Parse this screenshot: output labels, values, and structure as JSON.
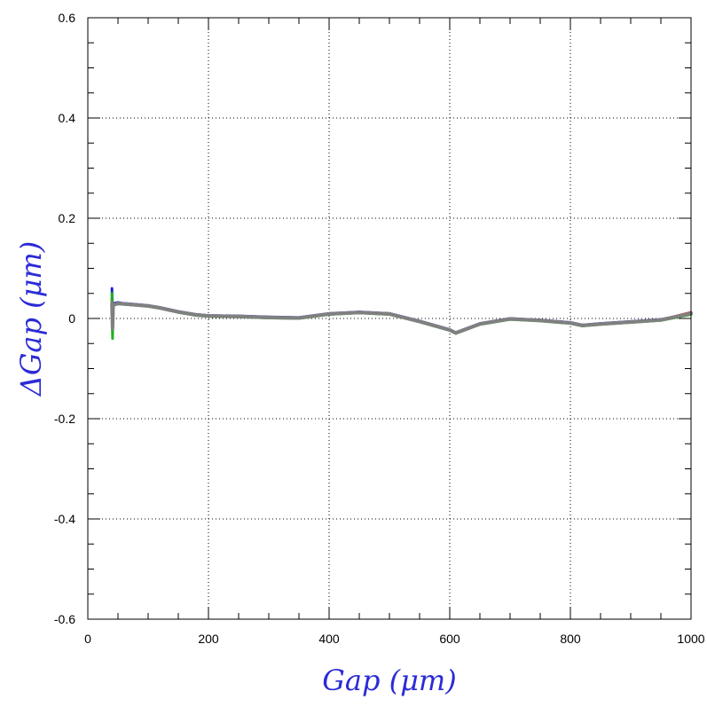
{
  "colors": {
    "axis_title": "#2b2bd6",
    "grid": "#000000",
    "frame": "#000000",
    "series_blue": "#1f1fd0",
    "series_red": "#d02020",
    "series_green": "#20b020",
    "series_gray": "#808080"
  },
  "chart_data": {
    "type": "line",
    "title": "",
    "xlabel": "Gap  (μm)",
    "ylabel": "ΔGap  (μm)",
    "xlim": [
      0,
      1000
    ],
    "ylim": [
      -0.6,
      0.6
    ],
    "x_ticks": [
      0,
      200,
      400,
      600,
      800,
      1000
    ],
    "x_tick_labels": [
      "0",
      "200",
      "400",
      "600",
      "800",
      "1000"
    ],
    "y_ticks": [
      -0.6,
      -0.4,
      -0.2,
      0,
      0.2,
      0.4,
      0.6
    ],
    "y_tick_labels": [
      "-0.6",
      "-0.4",
      "-0.2",
      "0",
      "0.2",
      "0.4",
      "0.6"
    ],
    "grid": true,
    "series": [
      {
        "color": "#1f1fd0",
        "x": [
          40,
          41,
          42,
          50,
          60,
          80,
          100,
          120,
          150,
          180,
          200,
          250,
          300,
          350,
          400,
          450,
          500,
          550,
          600,
          610,
          650,
          700,
          750,
          800,
          820,
          850,
          900,
          950,
          1000
        ],
        "y": [
          0.06,
          0.0,
          0.03,
          0.032,
          0.03,
          0.028,
          0.026,
          0.022,
          0.014,
          0.008,
          0.006,
          0.005,
          0.003,
          0.002,
          0.01,
          0.013,
          0.01,
          -0.005,
          -0.022,
          -0.028,
          -0.01,
          0.0,
          -0.003,
          -0.008,
          -0.013,
          -0.01,
          -0.006,
          -0.002,
          0.01
        ]
      },
      {
        "color": "#d02020",
        "x": [
          40,
          41,
          42,
          50,
          60,
          80,
          100,
          120,
          150,
          180,
          200,
          250,
          300,
          350,
          400,
          450,
          500,
          550,
          600,
          610,
          650,
          700,
          750,
          800,
          820,
          850,
          900,
          950,
          1000
        ],
        "y": [
          0.04,
          -0.03,
          0.028,
          0.03,
          0.029,
          0.027,
          0.025,
          0.021,
          0.013,
          0.007,
          0.005,
          0.004,
          0.002,
          0.001,
          0.009,
          0.012,
          0.009,
          -0.006,
          -0.023,
          -0.029,
          -0.011,
          -0.001,
          -0.004,
          -0.009,
          -0.014,
          -0.011,
          -0.007,
          -0.003,
          0.012
        ]
      },
      {
        "color": "#20b020",
        "x": [
          40,
          41,
          42,
          50,
          60,
          80,
          100,
          120,
          150,
          180,
          200,
          250,
          300,
          350,
          400,
          450,
          500,
          550,
          600,
          610,
          650,
          700,
          750,
          800,
          820,
          850,
          900,
          950,
          1000
        ],
        "y": [
          0.05,
          -0.04,
          0.026,
          0.029,
          0.028,
          0.026,
          0.024,
          0.02,
          0.012,
          0.006,
          0.004,
          0.003,
          0.001,
          0.0,
          0.008,
          0.011,
          0.008,
          -0.007,
          -0.024,
          -0.03,
          -0.012,
          -0.002,
          -0.005,
          -0.01,
          -0.015,
          -0.012,
          -0.008,
          -0.004,
          0.008
        ]
      },
      {
        "color": "#808080",
        "x": [
          40,
          41,
          42,
          50,
          60,
          80,
          100,
          120,
          150,
          180,
          200,
          250,
          300,
          350,
          400,
          450,
          500,
          550,
          600,
          610,
          650,
          700,
          750,
          800,
          820,
          850,
          900,
          950,
          1000
        ],
        "y": [
          0.03,
          -0.02,
          0.027,
          0.03,
          0.029,
          0.027,
          0.025,
          0.021,
          0.013,
          0.007,
          0.005,
          0.004,
          0.002,
          0.001,
          0.009,
          0.012,
          0.009,
          -0.006,
          -0.023,
          -0.029,
          -0.011,
          -0.001,
          -0.004,
          -0.009,
          -0.014,
          -0.011,
          -0.007,
          -0.003,
          0.01
        ]
      }
    ]
  }
}
